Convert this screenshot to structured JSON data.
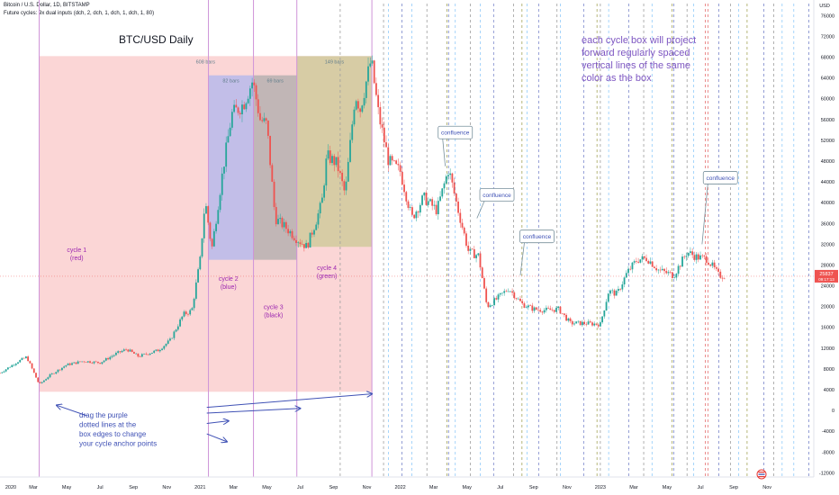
{
  "header": {
    "symbol_line": "Bitcoin / U.S. Dollar, 1D, BITSTAMP",
    "indicator_line": "Future cycles: 9x dual inputs (dch, 2, dch, 1, dch, 1, dch, 1, 80)"
  },
  "chart_data": {
    "type": "candlestick",
    "title": "BTC/USD Daily",
    "x_ticks": [
      "2020",
      "Mar",
      "May",
      "Jul",
      "Sep",
      "Nov",
      "2021",
      "Mar",
      "May",
      "Jul",
      "Sep",
      "Nov",
      "2022",
      "Mar",
      "May",
      "Jul",
      "Sep",
      "Nov",
      "2023",
      "Mar",
      "May",
      "Jul",
      "Sep",
      "Nov"
    ],
    "x_tick_months": [
      0,
      2,
      4,
      6,
      8,
      10,
      12,
      14,
      16,
      18,
      20,
      22,
      24,
      26,
      28,
      30,
      32,
      34,
      36,
      38,
      40,
      42,
      44,
      46
    ],
    "y_ticks": [
      76000,
      72000,
      68000,
      64000,
      60000,
      56000,
      52000,
      48000,
      44000,
      40000,
      36000,
      32000,
      28000,
      24000,
      20000,
      16000,
      12000,
      8000,
      4000,
      0,
      -4000,
      -8000,
      -12000
    ],
    "y_tick_labels": [
      "76000",
      "72000",
      "68000",
      "64000",
      "60000",
      "56000",
      "52000",
      "48000",
      "44000",
      "40000",
      "36000",
      "32000",
      "28000",
      "24000",
      "20000",
      "16000",
      "12000",
      "8000",
      "4000",
      "0",
      "-4000",
      "-8000",
      "-12000"
    ],
    "y_top_label": "USD",
    "ylim": [
      -12800,
      79000
    ],
    "xlim_months": [
      0,
      48.8
    ],
    "price_path": [
      [
        0,
        7200
      ],
      [
        1,
        9300
      ],
      [
        1.6,
        10300
      ],
      [
        2.35,
        5000
      ],
      [
        3,
        6800
      ],
      [
        4,
        8800
      ],
      [
        5,
        9500
      ],
      [
        6,
        9200
      ],
      [
        7,
        11000
      ],
      [
        7.6,
        11800
      ],
      [
        8.3,
        10400
      ],
      [
        9.5,
        11600
      ],
      [
        10.2,
        13500
      ],
      [
        11,
        18500
      ],
      [
        11.5,
        19200
      ],
      [
        12,
        29000
      ],
      [
        12.3,
        40500
      ],
      [
        12.7,
        31000
      ],
      [
        13.4,
        47000
      ],
      [
        13.9,
        57000
      ],
      [
        14.6,
        59000
      ],
      [
        15.15,
        63500
      ],
      [
        15.6,
        56000
      ],
      [
        16,
        55000
      ],
      [
        16.5,
        37000
      ],
      [
        17.2,
        35000
      ],
      [
        17.8,
        33000
      ],
      [
        18.4,
        31500
      ],
      [
        18.9,
        36000
      ],
      [
        19.3,
        40000
      ],
      [
        19.6,
        49000
      ],
      [
        20.2,
        47500
      ],
      [
        20.7,
        41500
      ],
      [
        21.3,
        61000
      ],
      [
        21.6,
        58000
      ],
      [
        22.25,
        67500
      ],
      [
        22.7,
        57000
      ],
      [
        23.3,
        48000
      ],
      [
        24,
        46000
      ],
      [
        24.7,
        37000
      ],
      [
        25.4,
        41000
      ],
      [
        26.2,
        38500
      ],
      [
        26.9,
        46500
      ],
      [
        27.4,
        39500
      ],
      [
        28.1,
        30500
      ],
      [
        28.7,
        29800
      ],
      [
        29.2,
        20000
      ],
      [
        29.8,
        21500
      ],
      [
        30.5,
        23500
      ],
      [
        31.3,
        20500
      ],
      [
        32,
        19500
      ],
      [
        32.8,
        19300
      ],
      [
        33.5,
        19500
      ],
      [
        34.2,
        16800
      ],
      [
        35,
        16800
      ],
      [
        36,
        16600
      ],
      [
        36.5,
        23000
      ],
      [
        37,
        22400
      ],
      [
        37.6,
        26500
      ],
      [
        38.2,
        29000
      ],
      [
        38.8,
        29300
      ],
      [
        39.5,
        27000
      ],
      [
        40.4,
        26000
      ],
      [
        41.2,
        30500
      ],
      [
        41.8,
        29500
      ],
      [
        42.4,
        29200
      ],
      [
        43.1,
        26000
      ],
      [
        43.5,
        25900
      ]
    ],
    "last_price": "25837",
    "last_price_sub": "09:17:13",
    "price_line": 25837,
    "cycle_boxes": [
      {
        "name": "cycle 1 (red)",
        "label": "cycle 1",
        "sub": "(red)",
        "bars": "608 bars",
        "x0": 2.35,
        "x1": 22.3,
        "y0": 3600,
        "y1": 68200,
        "fill": "#f8b4b4",
        "label_at": [
          4.6,
          30500
        ],
        "text_color": "#9c27b0"
      },
      {
        "name": "cycle 2 (blue)",
        "label": "cycle 2",
        "sub": "(blue)",
        "bars": "82 bars",
        "x0": 12.5,
        "x1": 15.2,
        "y0": 29000,
        "y1": 64500,
        "fill": "#aab4f0",
        "label_at": [
          13.7,
          25000
        ],
        "text_color": "#9c27b0"
      },
      {
        "name": "cycle 3 (black)",
        "label": "cycle 3",
        "sub": "(black)",
        "bars": "69 bars",
        "x0": 15.2,
        "x1": 17.8,
        "y0": 29000,
        "y1": 64500,
        "fill": "#a8a8a8",
        "label_at": [
          16.4,
          19500
        ],
        "text_color": "#9c27b0"
      },
      {
        "name": "cycle 4 (green)",
        "label": "cycle 4",
        "sub": "(green)",
        "bars": "149 bars",
        "x0": 17.8,
        "x1": 22.3,
        "y0": 31500,
        "y1": 68200,
        "fill": "#c8c890",
        "label_at": [
          19.6,
          27000
        ],
        "text_color": "#9c27b0"
      }
    ],
    "confluence_callouts": [
      {
        "text": "confluence",
        "box_at": [
          27.3,
          53500
        ],
        "pointer_to": [
          26.7,
          47000
        ]
      },
      {
        "text": "confluence",
        "box_at": [
          29.8,
          41500
        ],
        "pointer_to": [
          28.6,
          37000
        ]
      },
      {
        "text": "confluence",
        "box_at": [
          32.2,
          33500
        ],
        "pointer_to": [
          31.2,
          26000
        ]
      },
      {
        "text": "confluence",
        "box_at": [
          43.2,
          44800
        ],
        "pointer_to": [
          42.1,
          32000
        ]
      }
    ],
    "annotation_top": [
      "each cycle box will project",
      "forward regularly spaced",
      "vertical lines of the same",
      "color as the box"
    ],
    "annotation_bottom": [
      "drag the purple",
      "dotted lines at the",
      "box edges to change",
      "your cycle anchor points"
    ],
    "arrows": [
      {
        "from": [
          5.2,
          -1000
        ],
        "to": [
          3.4,
          1000
        ]
      },
      {
        "from": [
          12.4,
          600
        ],
        "to": [
          22.3,
          3200
        ]
      },
      {
        "from": [
          12.4,
          -500
        ],
        "to": [
          18.0,
          400
        ]
      },
      {
        "from": [
          12.4,
          -2500
        ],
        "to": [
          13.7,
          -2000
        ]
      },
      {
        "from": [
          12.4,
          -4500
        ],
        "to": [
          13.6,
          -6000
        ]
      }
    ],
    "anchor_lines_months": [
      2.35,
      12.5,
      15.2,
      17.8,
      22.3
    ],
    "projection_lines": [
      {
        "color": "#e57373",
        "months": [
          42.3,
          42.45
        ]
      },
      {
        "color": "#7986cb",
        "months": [
          24.1,
          26.9,
          29.6,
          32.3,
          35.0,
          37.7,
          40.4,
          43.1,
          45.8,
          48.5
        ]
      },
      {
        "color": "#9e9e9e",
        "months": [
          20.4,
          23.0,
          25.6,
          28.2,
          30.8,
          33.4,
          36.0,
          38.6,
          41.2,
          43.8,
          46.4
        ]
      },
      {
        "color": "#a5a55a",
        "months": [
          26.8,
          31.3,
          35.8,
          40.3,
          44.8
        ]
      },
      {
        "color": "#90caf9",
        "months": [
          23.3,
          24.7,
          27.3,
          28.8,
          31.6,
          33.6,
          36.5,
          39.1,
          41.6,
          44.3,
          46.9,
          47.6
        ]
      }
    ]
  }
}
